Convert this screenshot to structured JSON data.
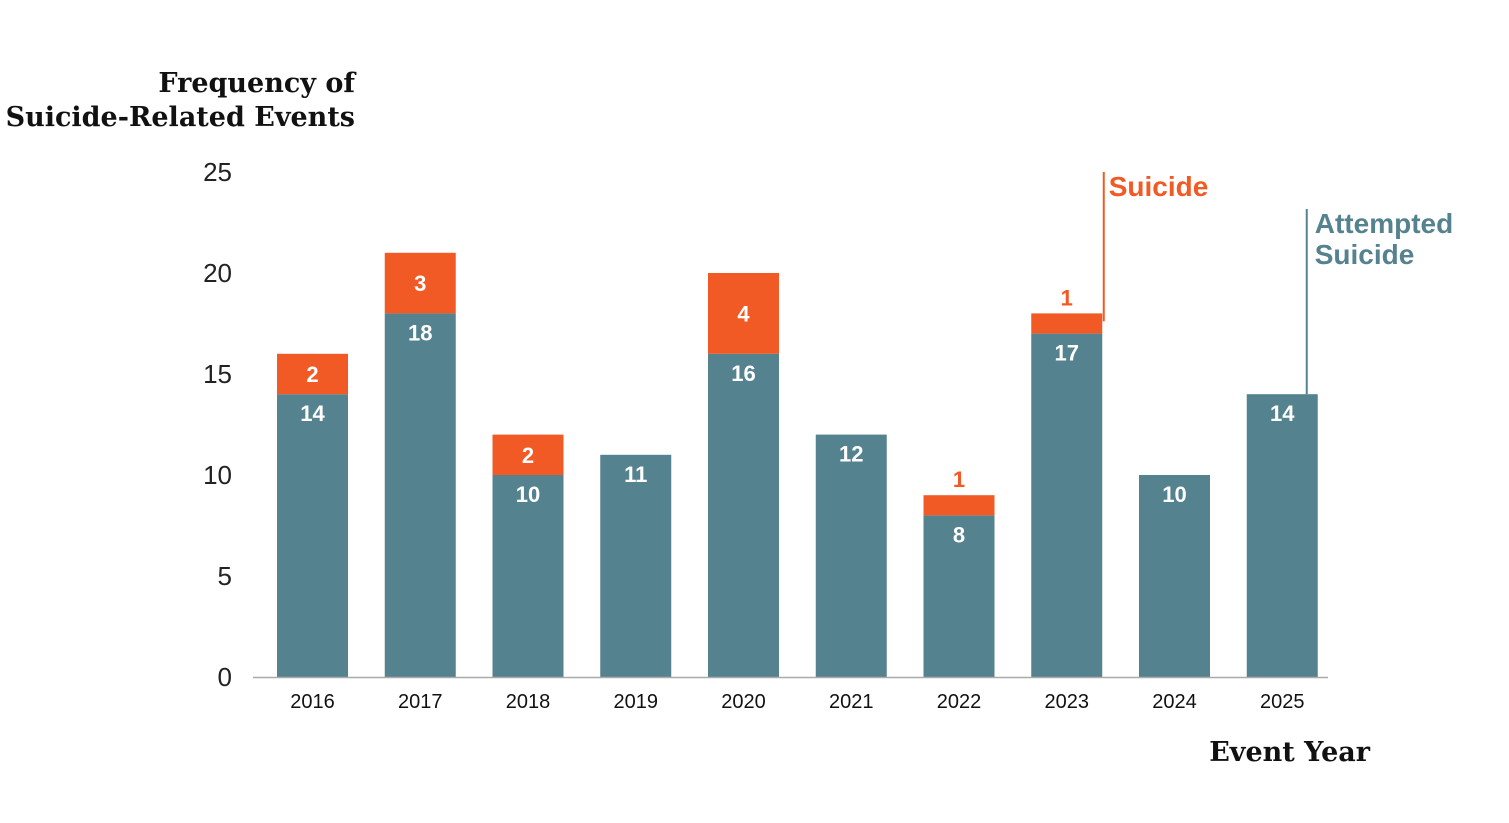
{
  "chart_data": {
    "type": "bar",
    "stacked": true,
    "ylabel_line1": "Frequency of",
    "ylabel_line2": "Suicide-Related Events",
    "xlabel": "Event Year",
    "ylim": [
      0,
      25
    ],
    "yticks": [
      0,
      5,
      10,
      15,
      20,
      25
    ],
    "categories": [
      "2016",
      "2017",
      "2018",
      "2019",
      "2020",
      "2021",
      "2022",
      "2023",
      "2024",
      "2025"
    ],
    "series": [
      {
        "name": "Attempted Suicide",
        "label_lines": [
          "Attempted",
          "Suicide"
        ],
        "color": "#55828f",
        "values": [
          14,
          18,
          10,
          11,
          16,
          12,
          8,
          17,
          10,
          14
        ]
      },
      {
        "name": "Suicide",
        "label_lines": [
          "Suicide"
        ],
        "color": "#f15a24",
        "values": [
          2,
          3,
          2,
          0,
          4,
          0,
          1,
          1,
          0,
          0
        ]
      }
    ],
    "grid": false,
    "legend": "direct labels at top-right"
  }
}
